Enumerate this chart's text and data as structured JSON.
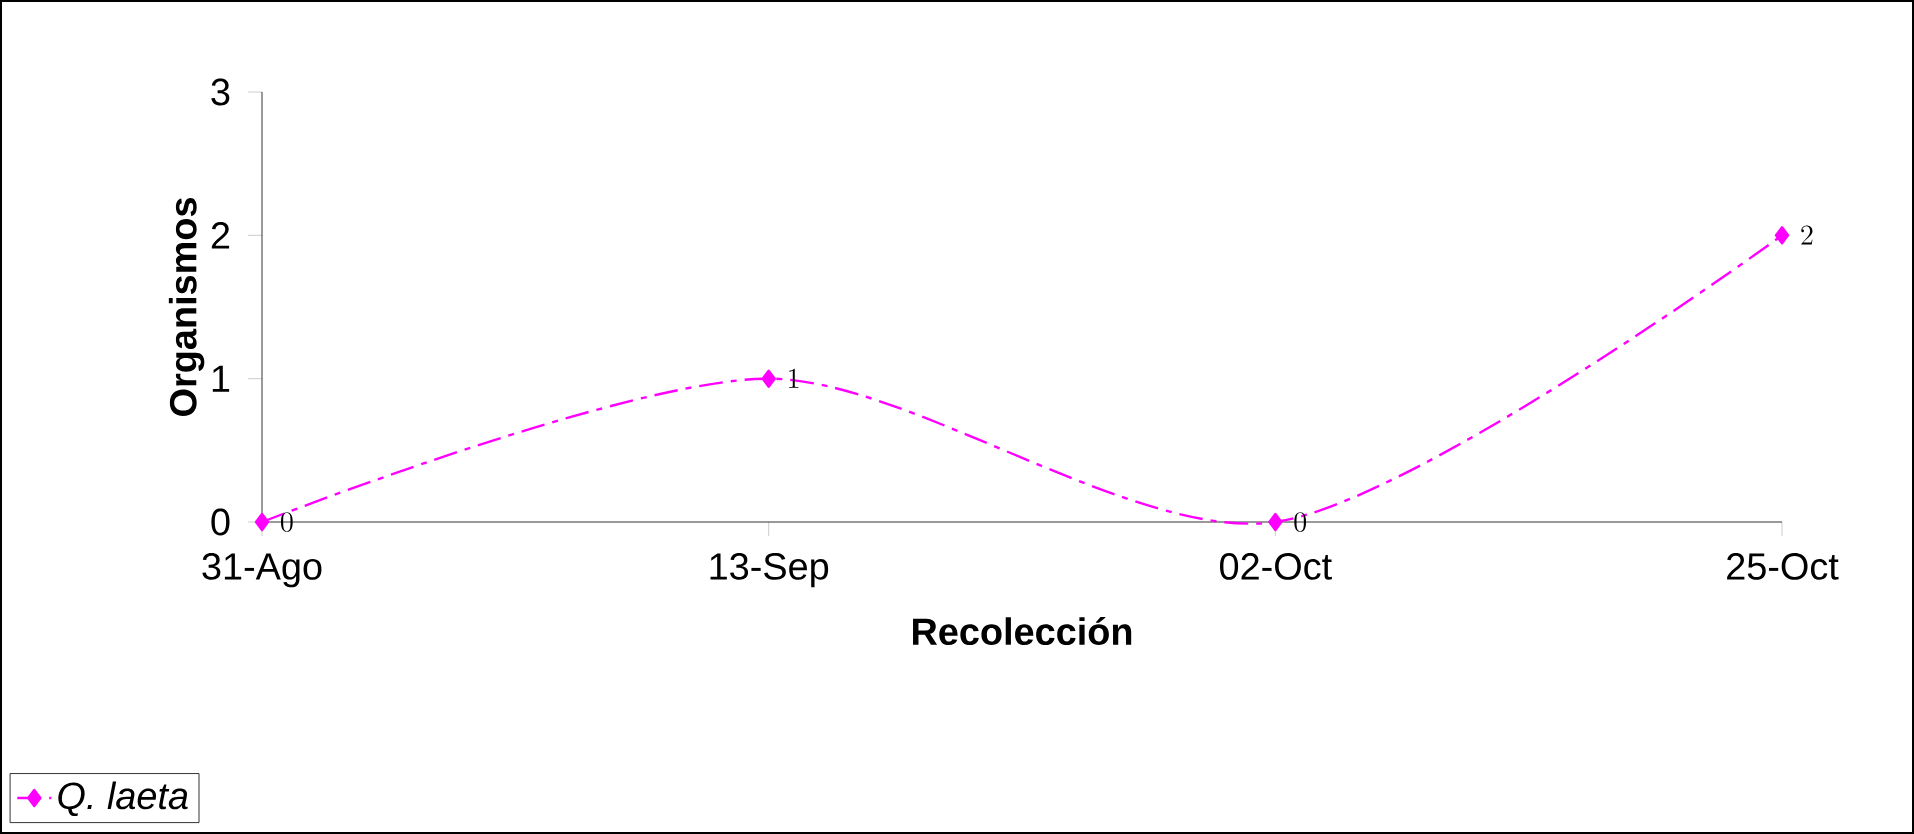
{
  "chart_data": {
    "type": "line",
    "xlabel": "Recolección",
    "ylabel": "Organismos",
    "categories": [
      "31-Ago",
      "13-Sep",
      "02-Oct",
      "25-Oct"
    ],
    "series": [
      {
        "name": "Q. laeta",
        "color": "#ff00ff",
        "values": [
          0,
          1,
          0,
          2
        ]
      }
    ],
    "ylim": [
      0,
      3
    ],
    "yticks": [
      0,
      1,
      2,
      3
    ],
    "grid": false,
    "legend": "bottom left",
    "marker": "diamond",
    "line_style": "dashdot",
    "data_labels": true
  }
}
